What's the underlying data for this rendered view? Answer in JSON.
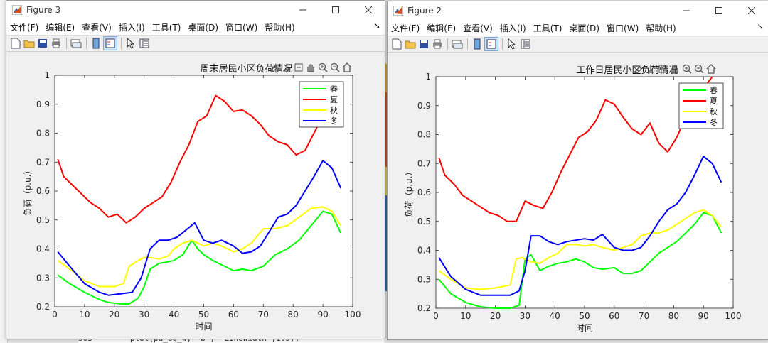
{
  "background": {
    "code_line": "503 —      plot(pd_bg_w, 'b', 'LineWidth',1.5);"
  },
  "menu_items": [
    "文件(F)",
    "编辑(E)",
    "查看(V)",
    "插入(I)",
    "工具(T)",
    "桌面(D)",
    "窗口(W)",
    "帮助(H)"
  ],
  "figures": [
    {
      "window_title": "Figure 3",
      "axis_title": "周末居民小区负荷情况",
      "xlabel": "时间",
      "ylabel": "负荷（p.u.）",
      "legend": [
        "春",
        "夏",
        "秋",
        "冬"
      ]
    },
    {
      "window_title": "Figure 2",
      "axis_title": "工作日居民小区负荷情况",
      "xlabel": "时间",
      "ylabel": "负荷（p.u.）",
      "legend": [
        "春",
        "夏",
        "秋",
        "冬"
      ]
    }
  ],
  "chart_data": [
    {
      "type": "line",
      "title": "周末居民小区负荷情况",
      "xlabel": "时间",
      "ylabel": "负荷（p.u.）",
      "xlim": [
        0,
        100
      ],
      "ylim": [
        0.2,
        1
      ],
      "xticks": [
        0,
        10,
        20,
        30,
        40,
        50,
        60,
        70,
        80,
        90,
        100
      ],
      "yticks": [
        0.2,
        0.3,
        0.4,
        0.5,
        0.6,
        0.7,
        0.8,
        0.9,
        1
      ],
      "grid": false,
      "legend_position": "top-right",
      "series": [
        {
          "name": "春",
          "color": "#00ff00",
          "x": [
            1,
            5,
            10,
            15,
            18,
            22,
            25,
            28,
            30,
            32,
            35,
            38,
            40,
            43,
            46,
            48,
            50,
            53,
            56,
            60,
            63,
            66,
            70,
            74,
            78,
            82,
            86,
            90,
            93,
            96
          ],
          "y": [
            0.31,
            0.28,
            0.25,
            0.225,
            0.215,
            0.21,
            0.21,
            0.23,
            0.27,
            0.33,
            0.35,
            0.355,
            0.36,
            0.38,
            0.43,
            0.4,
            0.38,
            0.36,
            0.345,
            0.325,
            0.33,
            0.325,
            0.34,
            0.38,
            0.4,
            0.43,
            0.48,
            0.53,
            0.52,
            0.455
          ]
        },
        {
          "name": "夏",
          "color": "#ff0000",
          "x": [
            1,
            3,
            6,
            9,
            12,
            15,
            18,
            21,
            24,
            27,
            30,
            33,
            36,
            39,
            42,
            45,
            48,
            51,
            54,
            57,
            60,
            63,
            66,
            69,
            72,
            75,
            78,
            81,
            84,
            87,
            89
          ],
          "y": [
            0.71,
            0.65,
            0.62,
            0.59,
            0.56,
            0.54,
            0.51,
            0.52,
            0.49,
            0.51,
            0.54,
            0.56,
            0.58,
            0.63,
            0.7,
            0.76,
            0.84,
            0.86,
            0.93,
            0.91,
            0.875,
            0.88,
            0.86,
            0.83,
            0.79,
            0.77,
            0.76,
            0.725,
            0.74,
            0.8,
            0.84
          ]
        },
        {
          "name": "秋",
          "color": "#ffff00",
          "x": [
            1,
            5,
            10,
            15,
            20,
            23,
            25,
            28,
            30,
            32,
            35,
            38,
            40,
            43,
            46,
            48,
            50,
            53,
            56,
            60,
            63,
            66,
            70,
            74,
            78,
            82,
            86,
            90,
            93,
            96
          ],
          "y": [
            0.36,
            0.33,
            0.29,
            0.27,
            0.27,
            0.28,
            0.34,
            0.36,
            0.37,
            0.37,
            0.365,
            0.375,
            0.4,
            0.42,
            0.43,
            0.42,
            0.41,
            0.42,
            0.41,
            0.39,
            0.4,
            0.42,
            0.47,
            0.47,
            0.48,
            0.51,
            0.54,
            0.545,
            0.53,
            0.48
          ]
        },
        {
          "name": "冬",
          "color": "#0000ff",
          "x": [
            1,
            5,
            10,
            15,
            18,
            22,
            26,
            29,
            32,
            35,
            38,
            41,
            44,
            47,
            50,
            53,
            56,
            60,
            63,
            66,
            69,
            72,
            75,
            78,
            81,
            84,
            87,
            90,
            93,
            96
          ],
          "y": [
            0.39,
            0.34,
            0.28,
            0.25,
            0.24,
            0.245,
            0.25,
            0.3,
            0.4,
            0.43,
            0.43,
            0.44,
            0.465,
            0.49,
            0.43,
            0.42,
            0.43,
            0.41,
            0.385,
            0.39,
            0.41,
            0.46,
            0.51,
            0.52,
            0.55,
            0.6,
            0.65,
            0.705,
            0.68,
            0.61
          ]
        }
      ]
    },
    {
      "type": "line",
      "title": "工作日居民小区负荷情况",
      "xlabel": "时间",
      "ylabel": "负荷（p.u.）",
      "xlim": [
        0,
        100
      ],
      "ylim": [
        0.2,
        1
      ],
      "xticks": [
        0,
        10,
        20,
        30,
        40,
        50,
        60,
        70,
        80,
        90,
        100
      ],
      "yticks": [
        0.2,
        0.3,
        0.4,
        0.5,
        0.6,
        0.7,
        0.8,
        0.9,
        1
      ],
      "grid": false,
      "legend_position": "top-right",
      "series": [
        {
          "name": "春",
          "color": "#00ff00",
          "x": [
            1,
            5,
            10,
            15,
            20,
            25,
            28,
            30,
            32,
            35,
            38,
            41,
            44,
            47,
            50,
            53,
            56,
            60,
            63,
            66,
            69,
            72,
            75,
            78,
            81,
            84,
            87,
            90,
            93,
            96
          ],
          "y": [
            0.3,
            0.25,
            0.22,
            0.205,
            0.2,
            0.2,
            0.21,
            0.37,
            0.385,
            0.33,
            0.345,
            0.355,
            0.36,
            0.37,
            0.36,
            0.34,
            0.335,
            0.34,
            0.32,
            0.32,
            0.33,
            0.36,
            0.39,
            0.41,
            0.43,
            0.46,
            0.49,
            0.53,
            0.52,
            0.46
          ]
        },
        {
          "name": "夏",
          "color": "#ff0000",
          "x": [
            1,
            3,
            6,
            9,
            12,
            15,
            18,
            21,
            24,
            27,
            30,
            33,
            36,
            39,
            42,
            45,
            48,
            51,
            54,
            57,
            60,
            63,
            66,
            69,
            72,
            75,
            78,
            81,
            84,
            87,
            90,
            93
          ],
          "y": [
            0.72,
            0.66,
            0.63,
            0.59,
            0.57,
            0.55,
            0.53,
            0.52,
            0.5,
            0.5,
            0.57,
            0.555,
            0.545,
            0.6,
            0.67,
            0.73,
            0.79,
            0.81,
            0.85,
            0.92,
            0.905,
            0.86,
            0.82,
            0.8,
            0.84,
            0.77,
            0.74,
            0.79,
            0.86,
            0.9,
            0.96,
            1.0
          ]
        },
        {
          "name": "秋",
          "color": "#ffff00",
          "x": [
            1,
            5,
            10,
            15,
            20,
            25,
            27,
            29,
            32,
            35,
            38,
            41,
            44,
            47,
            50,
            53,
            56,
            60,
            63,
            66,
            69,
            72,
            75,
            78,
            81,
            84,
            87,
            90,
            93,
            96
          ],
          "y": [
            0.33,
            0.3,
            0.27,
            0.265,
            0.27,
            0.28,
            0.37,
            0.375,
            0.36,
            0.355,
            0.375,
            0.39,
            0.42,
            0.42,
            0.415,
            0.42,
            0.41,
            0.4,
            0.41,
            0.42,
            0.45,
            0.46,
            0.46,
            0.47,
            0.49,
            0.51,
            0.53,
            0.54,
            0.52,
            0.48
          ]
        },
        {
          "name": "冬",
          "color": "#0000ff",
          "x": [
            1,
            5,
            10,
            15,
            20,
            25,
            28,
            30,
            32,
            35,
            38,
            41,
            44,
            47,
            50,
            53,
            56,
            60,
            63,
            66,
            69,
            72,
            75,
            78,
            81,
            84,
            87,
            90,
            93,
            96
          ],
          "y": [
            0.375,
            0.31,
            0.265,
            0.245,
            0.245,
            0.245,
            0.26,
            0.33,
            0.45,
            0.45,
            0.43,
            0.42,
            0.43,
            0.435,
            0.44,
            0.435,
            0.455,
            0.41,
            0.4,
            0.4,
            0.41,
            0.45,
            0.5,
            0.54,
            0.56,
            0.6,
            0.66,
            0.725,
            0.7,
            0.635
          ]
        }
      ]
    }
  ]
}
